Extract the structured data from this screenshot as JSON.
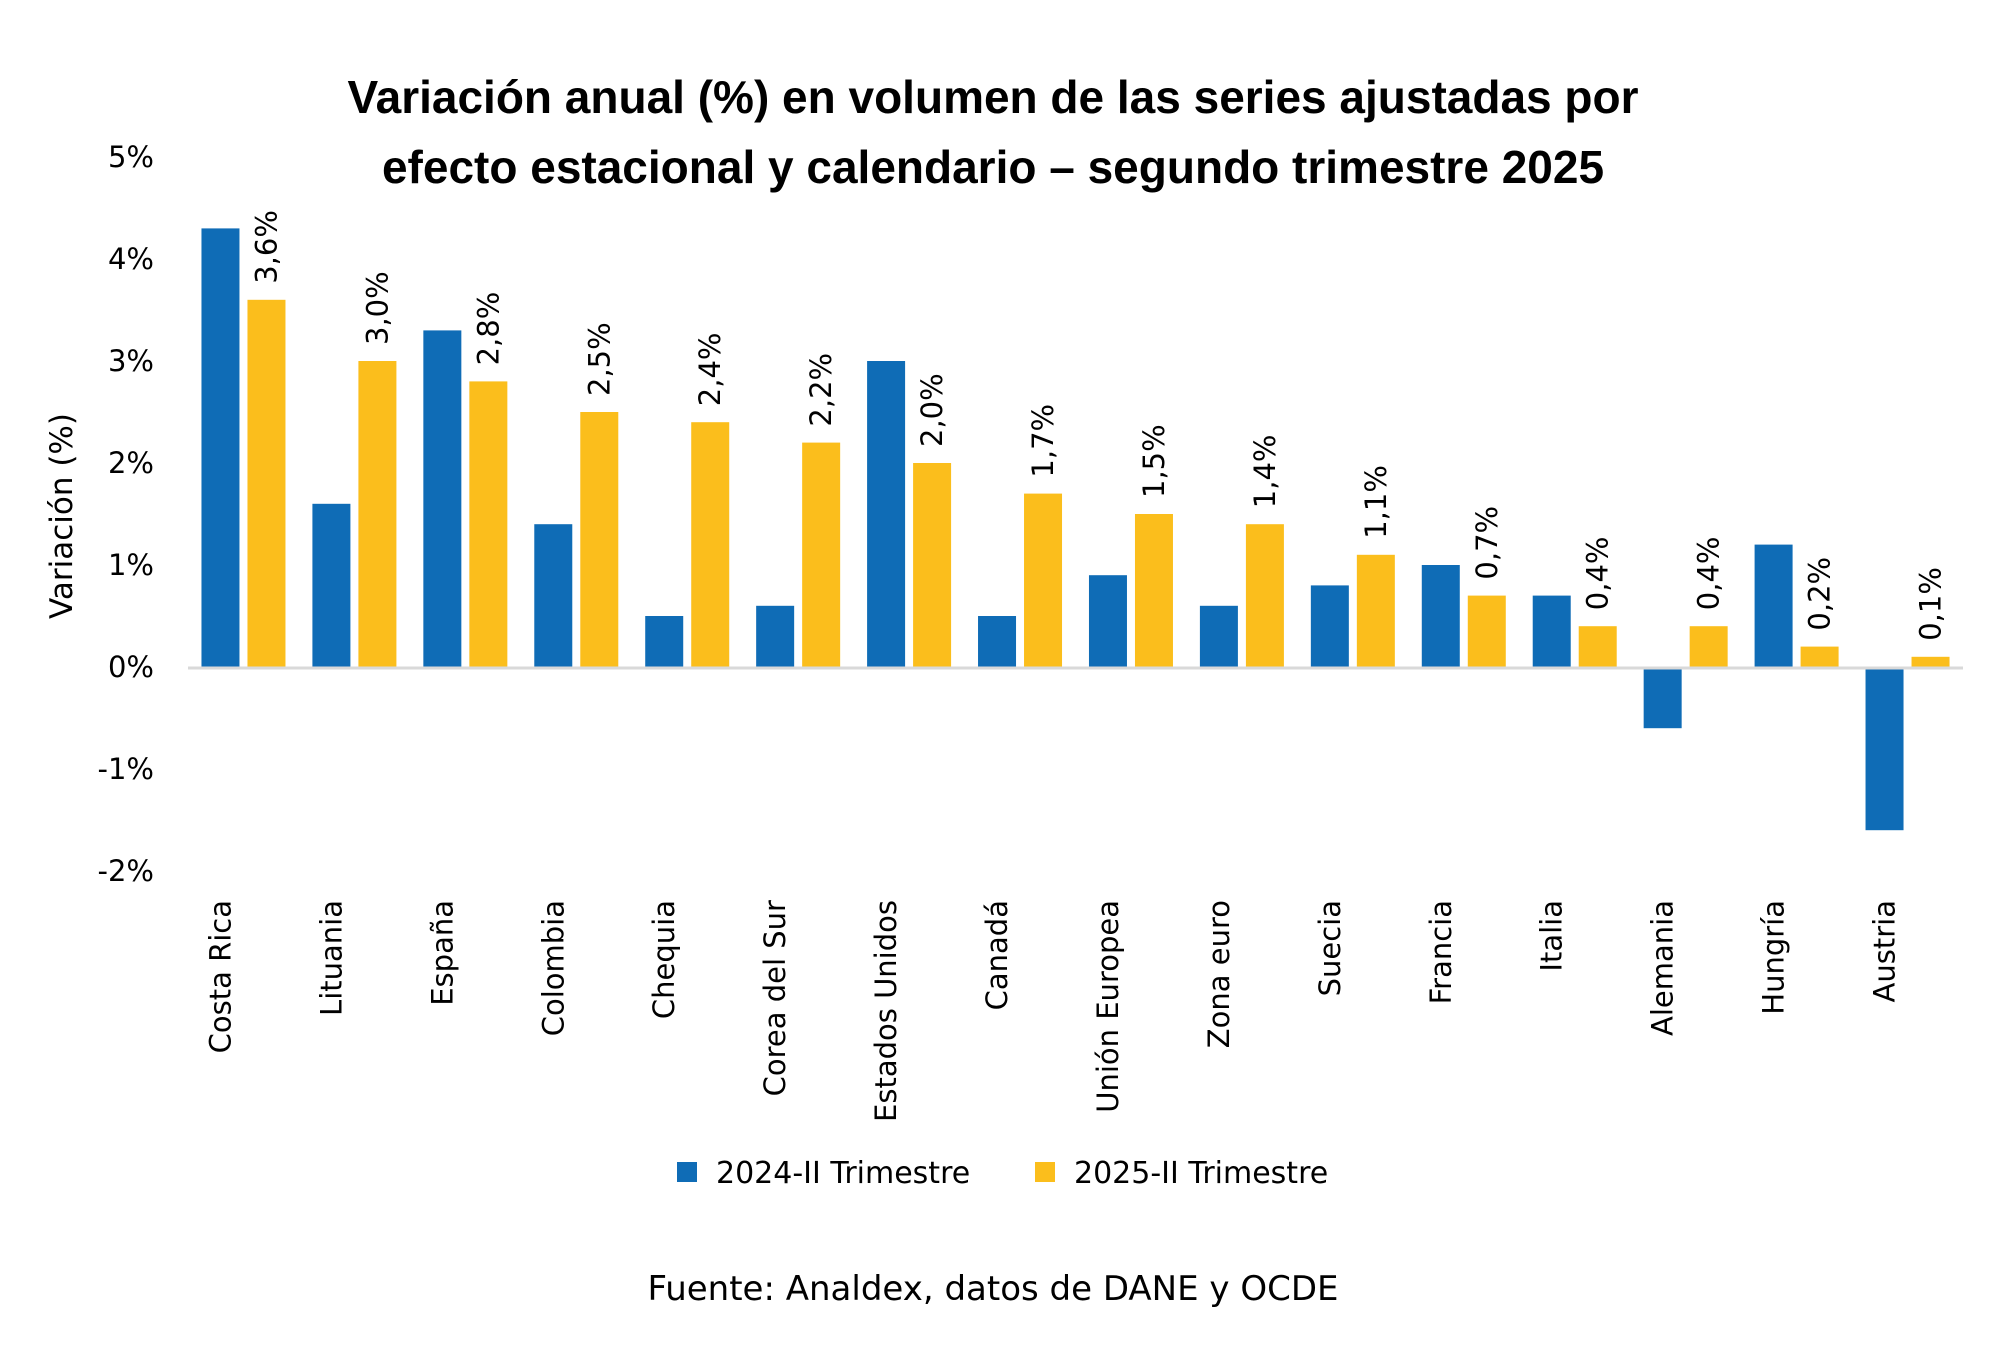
{
  "chart_data": {
    "type": "bar",
    "title": [
      "Variación anual (%) en volumen de las series ajustadas por",
      "efecto estacional y calendario – segundo trimestre 2025"
    ],
    "xlabel": "",
    "ylabel": "Variación (%)",
    "ylim": [
      -2,
      5
    ],
    "yticks": [
      5,
      4,
      3,
      2,
      1,
      0,
      -1,
      -2
    ],
    "ytick_labels": [
      "5%",
      "4%",
      "3%",
      "2%",
      "1%",
      "0%",
      "-1%",
      "-2%"
    ],
    "grid": false,
    "legend_position": "bottom",
    "categories": [
      "Costa Rica",
      "Lituania",
      "España",
      "Colombia",
      "Chequia",
      "Corea del Sur",
      "Estados Unidos",
      "Canadá",
      "Unión Europea",
      "Zona euro",
      "Suecia",
      "Francia",
      "Italia",
      "Alemania",
      "Hungría",
      "Austria"
    ],
    "series": [
      {
        "name": "2024-II Trimestre",
        "color": "#0F6CB6",
        "values": [
          4.3,
          1.6,
          3.3,
          1.4,
          0.5,
          0.6,
          3.0,
          0.5,
          0.9,
          0.6,
          0.8,
          1.0,
          0.7,
          -0.6,
          1.2,
          -1.6
        ],
        "data_labels": null
      },
      {
        "name": "2025-II Trimestre",
        "color": "#FBBE1C",
        "values": [
          3.6,
          3.0,
          2.8,
          2.5,
          2.4,
          2.2,
          2.0,
          1.7,
          1.5,
          1.4,
          1.1,
          0.7,
          0.4,
          0.4,
          0.2,
          0.1
        ],
        "data_labels": [
          "3,6%",
          "3,0%",
          "2,8%",
          "2,5%",
          "2,4%",
          "2,2%",
          "2,0%",
          "1,7%",
          "1,5%",
          "1,4%",
          "1,1%",
          "0,7%",
          "0,4%",
          "0,4%",
          "0,2%",
          "0,1%"
        ]
      }
    ],
    "source": "Fuente: Analdex, datos de DANE y OCDE"
  },
  "colors": {
    "axis": "#D9D9D9",
    "text": "#000000"
  }
}
